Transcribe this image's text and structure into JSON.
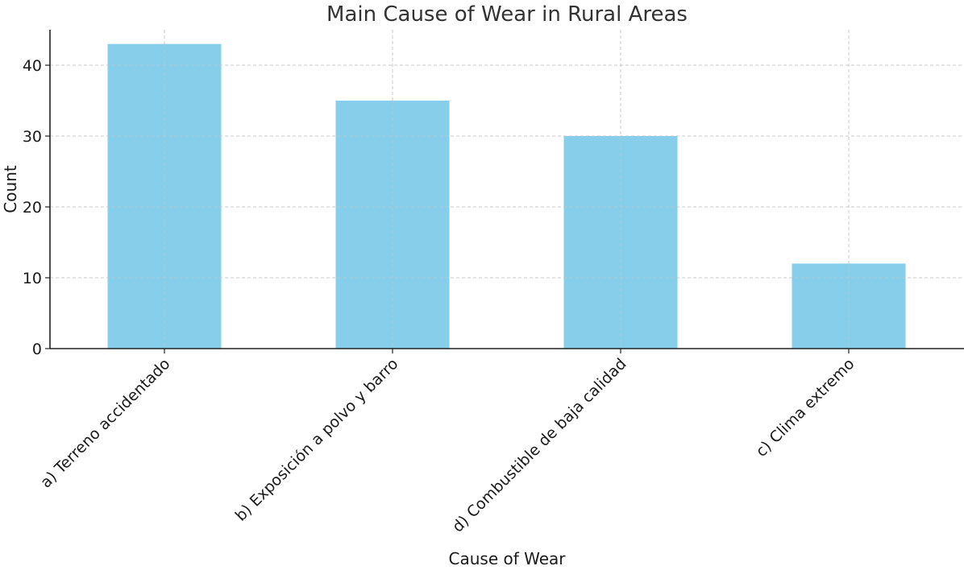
{
  "chart_data": {
    "type": "bar",
    "title": "Main Cause of Wear in Rural Areas",
    "xlabel": "Cause of Wear",
    "ylabel": "Count",
    "categories": [
      "a) Terreno accidentado",
      "b) Exposición a polvo y barro",
      "d) Combustible de baja calidad",
      "c) Clima extremo"
    ],
    "values": [
      43,
      35,
      30,
      12
    ],
    "ylim": [
      0,
      45
    ],
    "yticks": [
      0,
      10,
      20,
      30,
      40
    ],
    "grid": true,
    "bar_color": "#87CEEB"
  }
}
